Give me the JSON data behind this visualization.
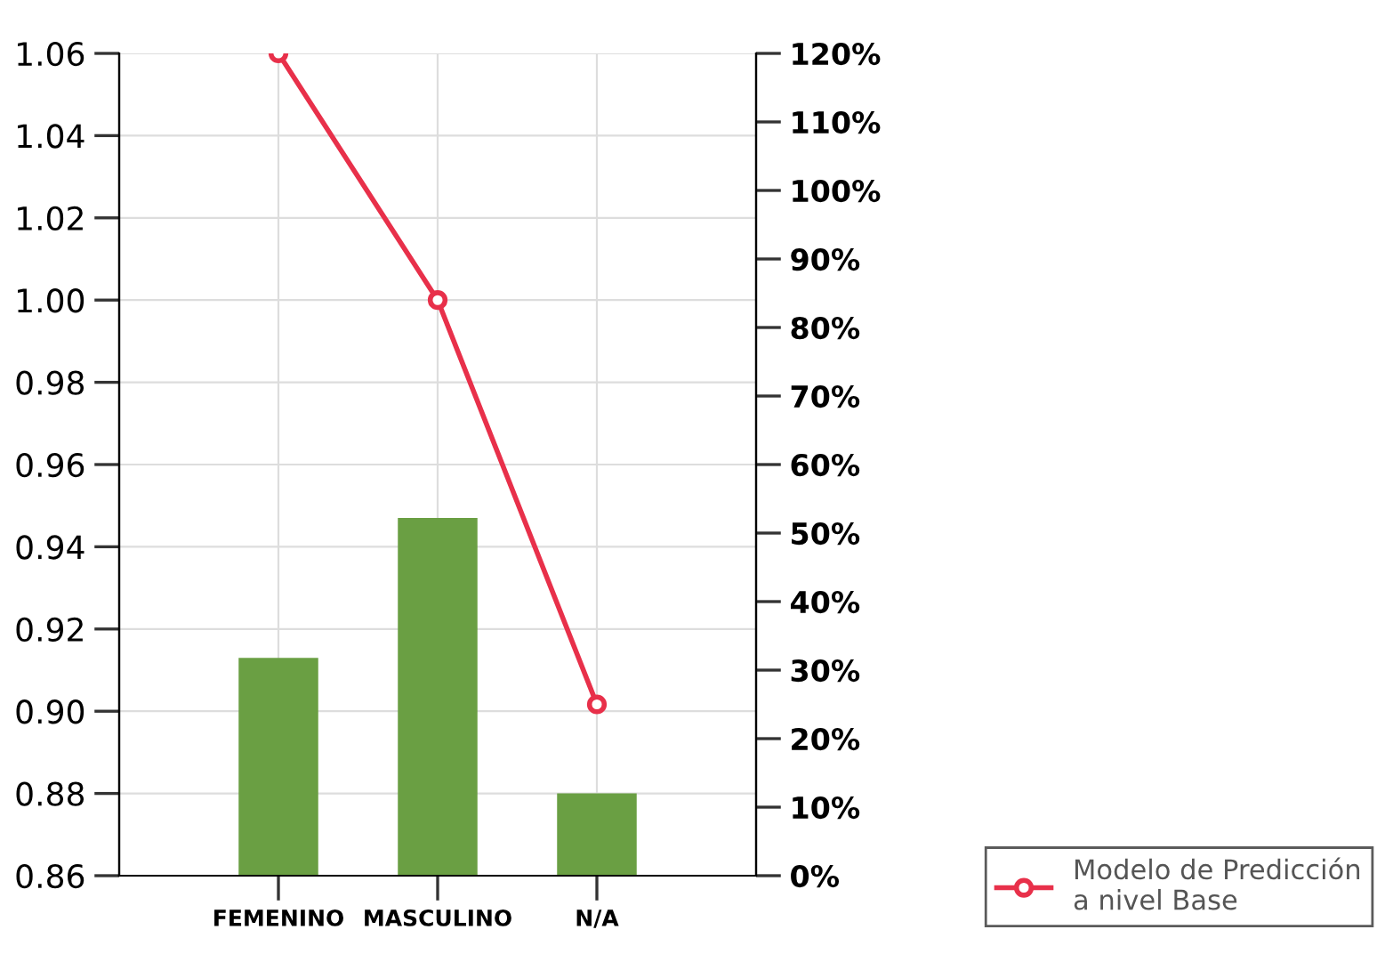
{
  "chart_data": {
    "type": "bar",
    "categories": [
      "FEMENINO",
      "MASCULINO",
      "N/A"
    ],
    "series": [
      {
        "color": "#6a9f43",
        "values": [
          0.913,
          0.947,
          0.88
        ]
      },
      {
        "type": "line",
        "axis": "y2",
        "name": "Modelo de Predicción\na nivel Base",
        "color": "#e8304a",
        "values": [
          120,
          84,
          25
        ],
        "marker": "circle"
      }
    ],
    "ylim": [
      0.86,
      1.06
    ],
    "yticks": [
      {
        "value": 0.86,
        "label": "0.86"
      },
      {
        "value": 0.88,
        "label": "0.88"
      },
      {
        "value": 0.9,
        "label": "0.90"
      },
      {
        "value": 0.92,
        "label": "0.92"
      },
      {
        "value": 0.94,
        "label": "0.94"
      },
      {
        "value": 0.96,
        "label": "0.96"
      },
      {
        "value": 0.98,
        "label": "0.98"
      },
      {
        "value": 1.0,
        "label": "1.00"
      },
      {
        "value": 1.02,
        "label": "1.02"
      },
      {
        "value": 1.04,
        "label": "1.04"
      },
      {
        "value": 1.06,
        "label": "1.06"
      }
    ],
    "y2lim": [
      0,
      120
    ],
    "y2ticks": [
      {
        "value": 0,
        "label": "0%"
      },
      {
        "value": 10,
        "label": "10%"
      },
      {
        "value": 20,
        "label": "20%"
      },
      {
        "value": 30,
        "label": "30%"
      },
      {
        "value": 40,
        "label": "40%"
      },
      {
        "value": 50,
        "label": "50%"
      },
      {
        "value": 60,
        "label": "60%"
      },
      {
        "value": 70,
        "label": "70%"
      },
      {
        "value": 80,
        "label": "80%"
      },
      {
        "value": 90,
        "label": "90%"
      },
      {
        "value": 100,
        "label": "100%"
      },
      {
        "value": 110,
        "label": "110%"
      },
      {
        "value": 120,
        "label": "120%"
      }
    ],
    "grid": true,
    "legend": "bottom right"
  }
}
